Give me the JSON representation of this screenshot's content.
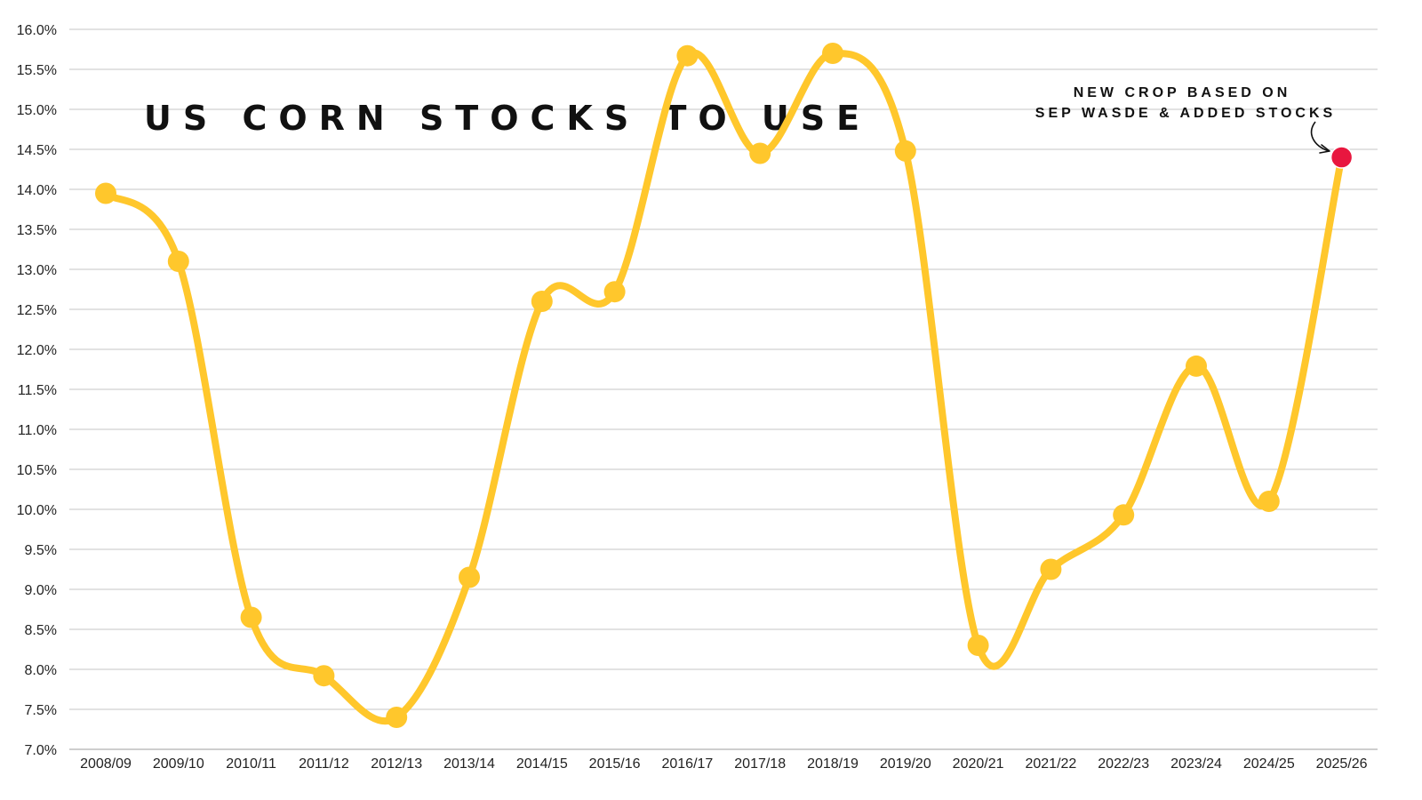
{
  "chart_data": {
    "type": "line",
    "title": "US CORN STOCKS TO USE",
    "xlabel": "",
    "ylabel": "",
    "categories": [
      "2008/09",
      "2009/10",
      "2010/11",
      "2011/12",
      "2012/13",
      "2013/14",
      "2014/15",
      "2015/16",
      "2016/17",
      "2017/18",
      "2018/19",
      "2019/20",
      "2020/21",
      "2021/22",
      "2022/23",
      "2023/24",
      "2024/25",
      "2025/26"
    ],
    "series": [
      {
        "values": [
          13.95,
          13.1,
          8.65,
          7.92,
          7.4,
          9.15,
          12.6,
          12.72,
          15.67,
          14.45,
          15.7,
          14.48,
          8.3,
          9.25,
          9.93,
          11.79,
          10.1,
          14.4
        ]
      }
    ],
    "ylim": [
      7.0,
      16.0
    ],
    "yticks": [
      7.0,
      7.5,
      8.0,
      8.5,
      9.0,
      9.5,
      10.0,
      10.5,
      11.0,
      11.5,
      12.0,
      12.5,
      13.0,
      13.5,
      14.0,
      14.5,
      15.0,
      15.5,
      16.0
    ],
    "ytick_format": "percent_1dp",
    "grid": true,
    "legend": "none",
    "annotation": {
      "lines": [
        "NEW CROP BASED ON",
        "SEP WASDE & ADDED STOCKS"
      ],
      "target_category": "2025/26"
    },
    "colors": {
      "line": "#FFC72C",
      "marker": "#FFC72C",
      "highlight_marker": "#E8173F",
      "grid": "#c4c4c4"
    }
  }
}
